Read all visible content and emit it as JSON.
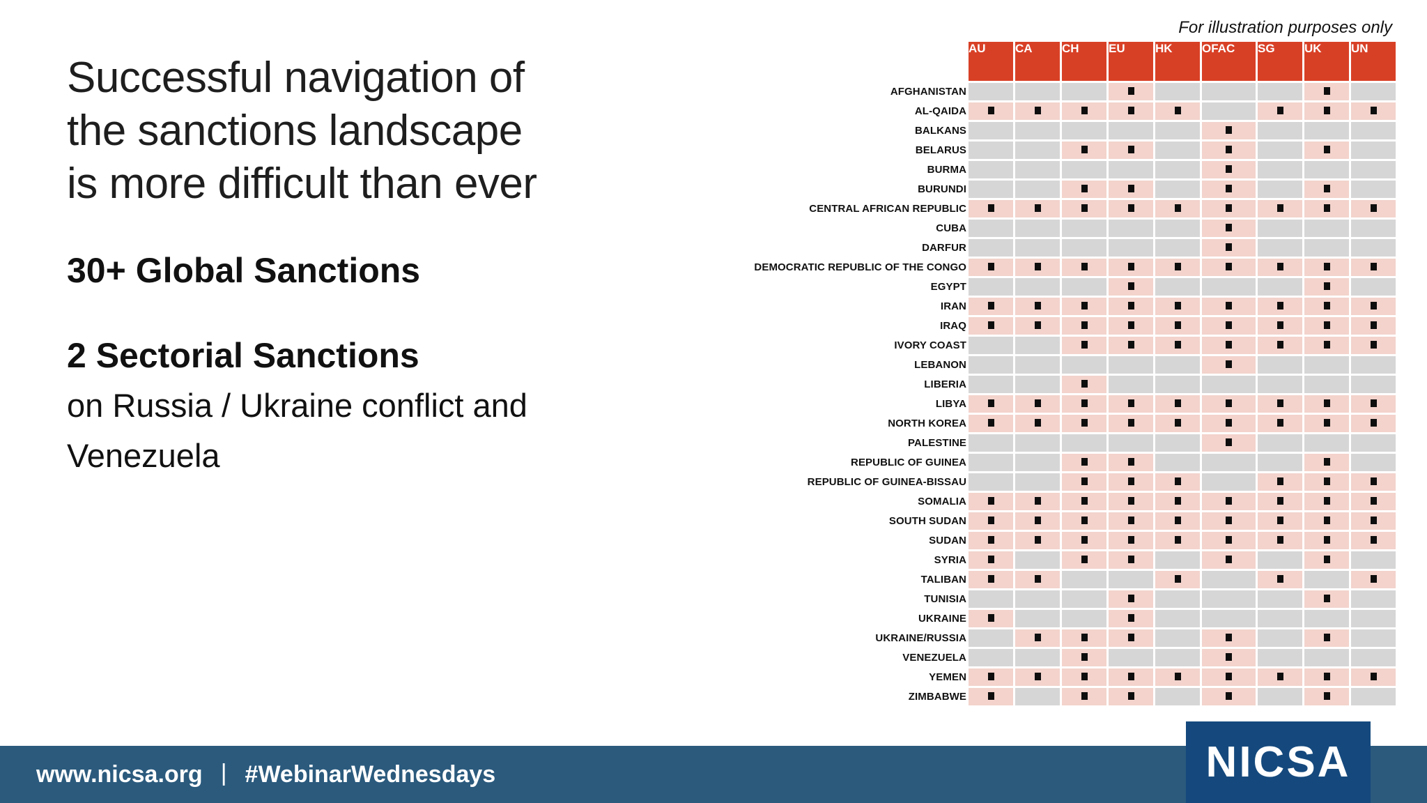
{
  "slide": {
    "title_lines": [
      "Successful navigation of",
      "the sanctions landscape",
      "is more difficult than ever"
    ],
    "stat_global": "30+ Global Sanctions",
    "stat_sectorial": "2 Sectorial Sanctions",
    "stat_detail_lines": [
      "on Russia / Ukraine conflict and",
      "Venezuela"
    ],
    "note": "For illustration purposes only"
  },
  "matrix": {
    "columns": [
      "AU",
      "CA",
      "CH",
      "EU",
      "HK",
      "OFAC",
      "SG",
      "UK",
      "UN"
    ],
    "mark_icon": "black-square",
    "rows": [
      {
        "name": "AFGHANISTAN",
        "marks": [
          0,
          0,
          0,
          1,
          0,
          0,
          0,
          1,
          0
        ]
      },
      {
        "name": "AL-QAIDA",
        "marks": [
          1,
          1,
          1,
          1,
          1,
          0,
          1,
          1,
          1
        ]
      },
      {
        "name": "BALKANS",
        "marks": [
          0,
          0,
          0,
          0,
          0,
          1,
          0,
          0,
          0
        ]
      },
      {
        "name": "BELARUS",
        "marks": [
          0,
          0,
          1,
          1,
          0,
          1,
          0,
          1,
          0
        ]
      },
      {
        "name": "BURMA",
        "marks": [
          0,
          0,
          0,
          0,
          0,
          1,
          0,
          0,
          0
        ]
      },
      {
        "name": "BURUNDI",
        "marks": [
          0,
          0,
          1,
          1,
          0,
          1,
          0,
          1,
          0
        ]
      },
      {
        "name": "CENTRAL AFRICAN REPUBLIC",
        "marks": [
          1,
          1,
          1,
          1,
          1,
          1,
          1,
          1,
          1
        ]
      },
      {
        "name": "CUBA",
        "marks": [
          0,
          0,
          0,
          0,
          0,
          1,
          0,
          0,
          0
        ]
      },
      {
        "name": "DARFUR",
        "marks": [
          0,
          0,
          0,
          0,
          0,
          1,
          0,
          0,
          0
        ]
      },
      {
        "name": "DEMOCRATIC REPUBLIC OF THE CONGO",
        "marks": [
          1,
          1,
          1,
          1,
          1,
          1,
          1,
          1,
          1
        ]
      },
      {
        "name": "EGYPT",
        "marks": [
          0,
          0,
          0,
          1,
          0,
          0,
          0,
          1,
          0
        ]
      },
      {
        "name": "IRAN",
        "marks": [
          1,
          1,
          1,
          1,
          1,
          1,
          1,
          1,
          1
        ]
      },
      {
        "name": "IRAQ",
        "marks": [
          1,
          1,
          1,
          1,
          1,
          1,
          1,
          1,
          1
        ]
      },
      {
        "name": "IVORY COAST",
        "marks": [
          0,
          0,
          1,
          1,
          1,
          1,
          1,
          1,
          1
        ]
      },
      {
        "name": "LEBANON",
        "marks": [
          0,
          0,
          0,
          0,
          0,
          1,
          0,
          0,
          0
        ]
      },
      {
        "name": "LIBERIA",
        "marks": [
          0,
          0,
          1,
          0,
          0,
          0,
          0,
          0,
          0
        ]
      },
      {
        "name": "LIBYA",
        "marks": [
          1,
          1,
          1,
          1,
          1,
          1,
          1,
          1,
          1
        ]
      },
      {
        "name": "NORTH KOREA",
        "marks": [
          1,
          1,
          1,
          1,
          1,
          1,
          1,
          1,
          1
        ]
      },
      {
        "name": "PALESTINE",
        "marks": [
          0,
          0,
          0,
          0,
          0,
          1,
          0,
          0,
          0
        ]
      },
      {
        "name": "REPUBLIC OF GUINEA",
        "marks": [
          0,
          0,
          1,
          1,
          0,
          0,
          0,
          1,
          0
        ]
      },
      {
        "name": "REPUBLIC OF GUINEA-BISSAU",
        "marks": [
          0,
          0,
          1,
          1,
          1,
          0,
          1,
          1,
          1
        ]
      },
      {
        "name": "SOMALIA",
        "marks": [
          1,
          1,
          1,
          1,
          1,
          1,
          1,
          1,
          1
        ]
      },
      {
        "name": "SOUTH SUDAN",
        "marks": [
          1,
          1,
          1,
          1,
          1,
          1,
          1,
          1,
          1
        ]
      },
      {
        "name": "SUDAN",
        "marks": [
          1,
          1,
          1,
          1,
          1,
          1,
          1,
          1,
          1
        ]
      },
      {
        "name": "SYRIA",
        "marks": [
          1,
          0,
          1,
          1,
          0,
          1,
          0,
          1,
          0
        ]
      },
      {
        "name": "TALIBAN",
        "marks": [
          1,
          1,
          0,
          0,
          1,
          0,
          1,
          0,
          1
        ]
      },
      {
        "name": "TUNISIA",
        "marks": [
          0,
          0,
          0,
          1,
          0,
          0,
          0,
          1,
          0
        ]
      },
      {
        "name": "UKRAINE",
        "marks": [
          1,
          0,
          0,
          1,
          0,
          0,
          0,
          0,
          0
        ]
      },
      {
        "name": "UKRAINE/RUSSIA",
        "marks": [
          0,
          1,
          1,
          1,
          0,
          1,
          0,
          1,
          0
        ]
      },
      {
        "name": "VENEZUELA",
        "marks": [
          0,
          0,
          1,
          0,
          0,
          1,
          0,
          0,
          0
        ]
      },
      {
        "name": "YEMEN",
        "marks": [
          1,
          1,
          1,
          1,
          1,
          1,
          1,
          1,
          1
        ]
      },
      {
        "name": "ZIMBABWE",
        "marks": [
          1,
          0,
          1,
          1,
          0,
          1,
          0,
          1,
          0
        ]
      }
    ]
  },
  "footer": {
    "url": "www.nicsa.org",
    "separator": "|",
    "hashtag": "#WebinarWednesdays",
    "logo_text": "NICSA"
  },
  "colors": {
    "header_red": "#D84026",
    "sanctioned_pink": "#F3D3CC",
    "empty_gray": "#D6D6D6",
    "footer_blue": "#2B5A7D",
    "logo_blue": "#15497D",
    "mark_black": "#0e0e0e"
  }
}
